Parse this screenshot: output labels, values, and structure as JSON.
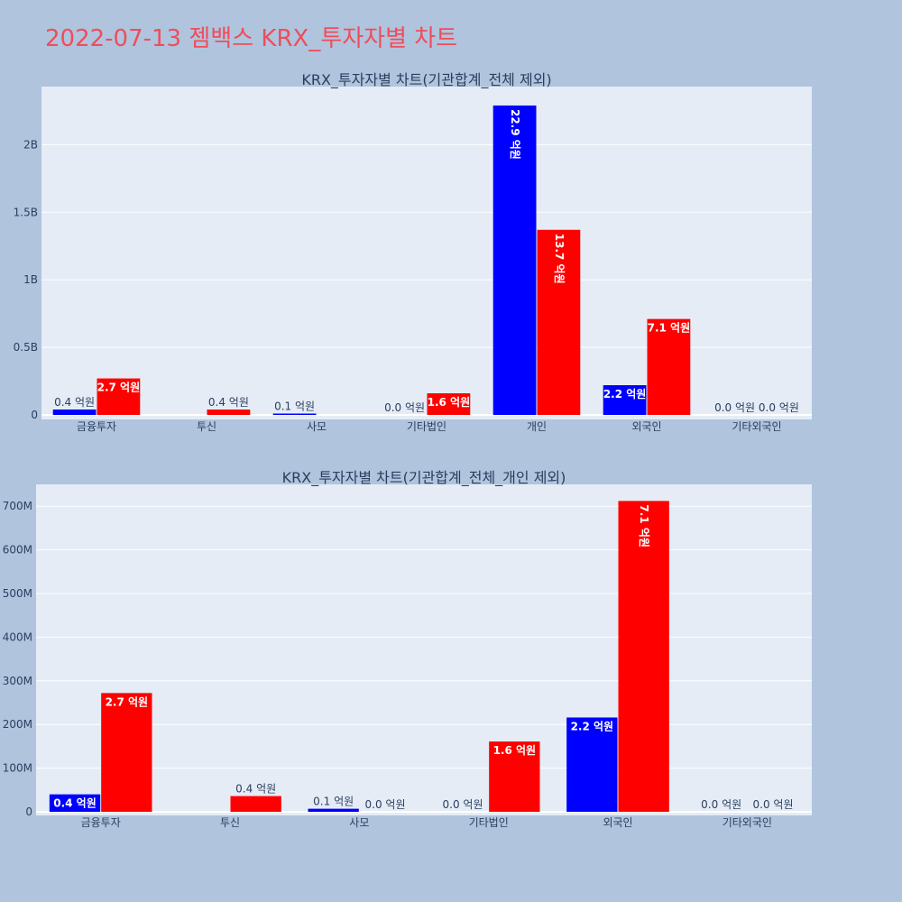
{
  "page": {
    "title": "2022-07-13 젬백스 KRX_투자자별 차트"
  },
  "colors": {
    "background": "#b0c4de",
    "plot_bg": "#e5ecf6",
    "buy": "#0000ff",
    "sell": "#ff0000",
    "title": "#ef4d5b",
    "text": "#2a3f5f"
  },
  "chart_data": [
    {
      "type": "bar",
      "title": "KRX_투자자별 차트(기관합계_전체 제외)",
      "categories": [
        "금융투자",
        "투신",
        "사모",
        "기타법인",
        "개인",
        "외국인",
        "기타외국인"
      ],
      "series": [
        {
          "color": "#0000ff",
          "values": [
            40000000,
            0,
            10000000,
            0,
            2290000000,
            220000000,
            0
          ],
          "labels": [
            "0.4 억원",
            "",
            "0.1 억원",
            "0.0 억원",
            "22.9 억원",
            "2.2 억원",
            "0.0 억원"
          ]
        },
        {
          "color": "#ff0000",
          "values": [
            270000000,
            40000000,
            0,
            160000000,
            1370000000,
            710000000,
            0
          ],
          "labels": [
            "2.7 억원",
            "0.4 억원",
            "",
            "1.6 억원",
            "13.7 억원",
            "7.1 억원",
            "0.0 억원"
          ]
        }
      ],
      "ylim": [
        0,
        2430000000
      ],
      "yticks": [
        0,
        500000000,
        1000000000,
        1500000000,
        2000000000
      ],
      "ytick_labels": [
        "0",
        "0.5B",
        "1B",
        "1.5B",
        "2B"
      ],
      "grid": true
    },
    {
      "type": "bar",
      "title": "KRX_투자자별 차트(기관합계_전체_개인 제외)",
      "categories": [
        "금융투자",
        "투신",
        "사모",
        "기타법인",
        "외국인",
        "기타외국인"
      ],
      "series": [
        {
          "color": "#0000ff",
          "values": [
            40000000,
            0,
            7000000,
            0,
            216000000,
            0
          ],
          "labels": [
            "0.4 억원",
            "",
            "0.1 억원",
            "0.0 억원",
            "2.2 억원",
            "0.0 억원"
          ]
        },
        {
          "color": "#ff0000",
          "values": [
            272000000,
            36000000,
            0,
            161000000,
            712000000,
            0
          ],
          "labels": [
            "2.7 억원",
            "0.4 억원",
            "0.0 억원",
            "1.6 억원",
            "7.1 억원",
            "0.0 억원"
          ]
        }
      ],
      "ylim": [
        0,
        750000000
      ],
      "yticks": [
        0,
        100000000,
        200000000,
        300000000,
        400000000,
        500000000,
        600000000,
        700000000
      ],
      "ytick_labels": [
        "0",
        "100M",
        "200M",
        "300M",
        "400M",
        "500M",
        "600M",
        "700M"
      ],
      "grid": true
    }
  ]
}
